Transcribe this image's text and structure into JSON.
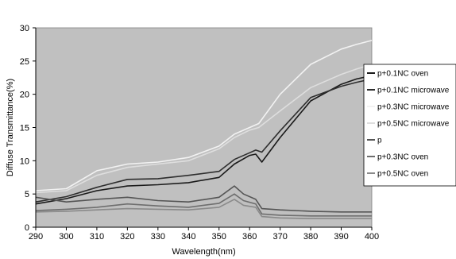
{
  "chart_data": {
    "type": "line",
    "xlabel": "Wavelength(nm)",
    "ylabel": "Diffuse Transmittance(%)",
    "xlim": [
      290,
      400
    ],
    "ylim": [
      0,
      30
    ],
    "x_ticks": [
      "290",
      "300",
      "310",
      "320",
      "330",
      "340",
      "350",
      "360",
      "370",
      "380",
      "390",
      "400"
    ],
    "y_ticks": [
      "0",
      "5",
      "10",
      "15",
      "20",
      "25",
      "30"
    ],
    "grid": false,
    "legend_position": "right",
    "plot_background": "#c0c0c0",
    "series": [
      {
        "name": "p+0.1NC oven",
        "color": "#1a1a1a",
        "x": [
          290,
          300,
          310,
          320,
          330,
          340,
          350,
          355,
          360,
          362,
          364,
          370,
          380,
          390,
          395,
          400
        ],
        "y": [
          3.5,
          4.3,
          5.5,
          6.2,
          6.4,
          6.7,
          7.5,
          9.5,
          10.8,
          11.0,
          9.8,
          13.5,
          19.0,
          21.5,
          22.3,
          22.8
        ]
      },
      {
        "name": "p+0.1NC microwave",
        "color": "#2e2e2e",
        "x": [
          290,
          300,
          310,
          320,
          330,
          340,
          350,
          355,
          360,
          362,
          364,
          370,
          380,
          390,
          395,
          400
        ],
        "y": [
          3.8,
          4.6,
          6.0,
          7.2,
          7.3,
          7.8,
          8.4,
          10.2,
          11.2,
          11.6,
          11.3,
          14.5,
          19.5,
          21.2,
          21.8,
          22.3
        ]
      },
      {
        "name": "p+0.3NC microwave",
        "color": "#f2f2f2",
        "x": [
          290,
          300,
          310,
          320,
          330,
          340,
          350,
          355,
          360,
          363,
          370,
          380,
          390,
          395,
          400
        ],
        "y": [
          5.5,
          5.8,
          8.5,
          9.5,
          9.8,
          10.5,
          12.2,
          14.0,
          15.0,
          15.6,
          20.0,
          24.5,
          26.8,
          27.5,
          28.1
        ]
      },
      {
        "name": "p+0.5NC microwave",
        "color": "#dedede",
        "x": [
          290,
          300,
          310,
          320,
          330,
          340,
          350,
          355,
          360,
          363,
          370,
          380,
          390,
          395,
          400
        ],
        "y": [
          5.2,
          5.5,
          7.8,
          9.0,
          9.5,
          10.0,
          11.8,
          13.5,
          14.6,
          15.0,
          17.5,
          21.0,
          23.0,
          23.8,
          24.5
        ]
      },
      {
        "name": "p",
        "color": "#555555",
        "x": [
          290,
          300,
          310,
          320,
          330,
          340,
          350,
          355,
          358,
          362,
          364,
          370,
          380,
          390,
          400
        ],
        "y": [
          4.5,
          3.8,
          4.2,
          4.5,
          4.0,
          3.8,
          4.5,
          6.2,
          5.0,
          4.2,
          2.8,
          2.6,
          2.4,
          2.3,
          2.3
        ]
      },
      {
        "name": "p+0.3NC oven",
        "color": "#6e6e6e",
        "x": [
          290,
          300,
          310,
          320,
          330,
          340,
          350,
          355,
          358,
          362,
          364,
          370,
          380,
          390,
          400
        ],
        "y": [
          2.5,
          2.7,
          3.0,
          3.5,
          3.2,
          3.0,
          3.6,
          5.0,
          4.0,
          3.5,
          2.0,
          1.8,
          1.7,
          1.7,
          1.7
        ]
      },
      {
        "name": "p+0.5NC oven",
        "color": "#8a8a8a",
        "x": [
          290,
          300,
          310,
          320,
          330,
          340,
          350,
          355,
          358,
          362,
          364,
          370,
          380,
          390,
          400
        ],
        "y": [
          2.3,
          2.4,
          2.6,
          2.8,
          2.7,
          2.6,
          3.0,
          4.2,
          3.3,
          3.0,
          1.6,
          1.4,
          1.3,
          1.3,
          1.3
        ]
      }
    ]
  }
}
